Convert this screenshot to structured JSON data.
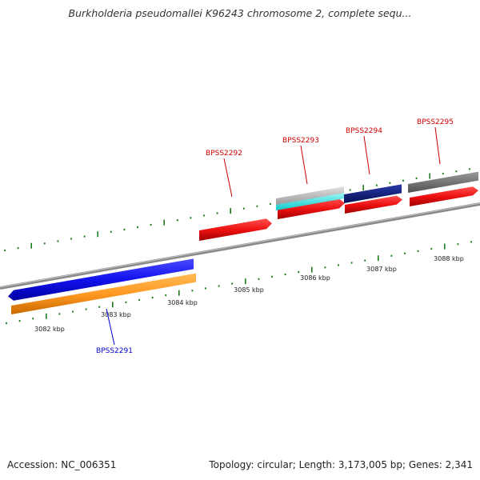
{
  "title": "Burkholderia pseudomallei K96243 chromosome 2, complete sequ...",
  "colors": {
    "forward_label": "#cc0000",
    "reverse_label": "#0000cc",
    "tick": "#1a7a1a",
    "backbone": "#8a8a8a",
    "cds_red": "#ee1111",
    "cds_blue": "#1111ee",
    "cds_orange": "#ff9922",
    "cds_cyan": "#22e6e6",
    "cds_navy": "#0a1a80",
    "cds_lightgray": "#bdbdbd",
    "cds_darkgray": "#6a6a6a"
  },
  "scale_labels": [
    "3082 kbp",
    "3083 kbp",
    "3084 kbp",
    "3085 kbp",
    "3086 kbp",
    "3087 kbp",
    "3088 kbp"
  ],
  "genes": [
    {
      "name": "BPSS2291",
      "strand": "reverse",
      "color": "blue"
    },
    {
      "name": "BPSS2292",
      "strand": "forward",
      "color": "red"
    },
    {
      "name": "BPSS2293",
      "strand": "forward",
      "color": "red"
    },
    {
      "name": "BPSS2294",
      "strand": "forward",
      "color": "red"
    },
    {
      "name": "BPSS2295",
      "strand": "forward",
      "color": "red"
    }
  ],
  "footer": {
    "accession": "Accession: NC_006351",
    "summary": "Topology: circular; Length: 3,173,005 bp; Genes: 2,341"
  }
}
